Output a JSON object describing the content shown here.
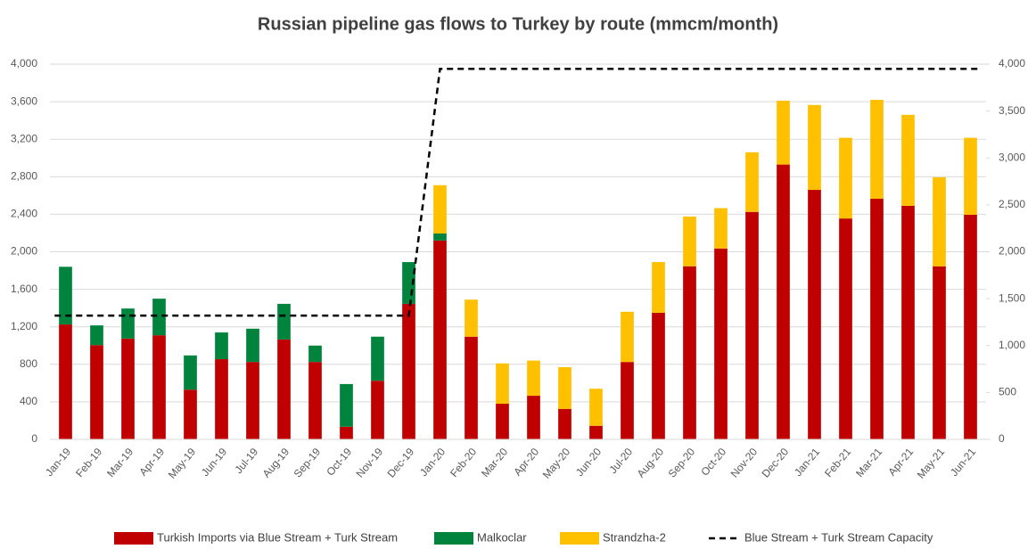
{
  "chart_data": {
    "type": "bar",
    "title": "Russian pipeline gas flows to Turkey by route (mmcm/month)",
    "categories": [
      "Jan-19",
      "Feb-19",
      "Mar-19",
      "Apr-19",
      "May-19",
      "Jun-19",
      "Jul-19",
      "Aug-19",
      "Sep-19",
      "Oct-19",
      "Nov-19",
      "Dec-19",
      "Jan-20",
      "Feb-20",
      "Mar-20",
      "Apr-20",
      "May-20",
      "Jun-20",
      "Jul-20",
      "Aug-20",
      "Sep-20",
      "Oct-20",
      "Nov-20",
      "Dec-20",
      "Jan-21",
      "Feb-21",
      "Mar-21",
      "Apr-21",
      "May-21",
      "Jun-21"
    ],
    "stacked": true,
    "grid": true,
    "legend": "bottom",
    "ylim": [
      0,
      4000
    ],
    "yticks": [
      0,
      400,
      800,
      {
        "value": 1200,
        "label": "1,200"
      },
      {
        "value": 1600,
        "label": "1,600"
      },
      {
        "value": 2000,
        "label": "2,000"
      },
      {
        "value": 2400,
        "label": "2,400"
      },
      {
        "value": 2800,
        "label": "2,800"
      },
      {
        "value": 3200,
        "label": "3,200"
      },
      {
        "value": 3600,
        "label": "3,600"
      },
      {
        "value": 4000,
        "label": "4,000"
      }
    ],
    "y2lim": [
      0,
      4000
    ],
    "y2ticks": [
      0,
      500,
      {
        "value": 1000,
        "label": "1,000"
      },
      {
        "value": 1500,
        "label": "1,500"
      },
      {
        "value": 2000,
        "label": "2,000"
      },
      {
        "value": 2500,
        "label": "2,500"
      },
      {
        "value": 3000,
        "label": "3,000"
      },
      {
        "value": 3500,
        "label": "3,500"
      },
      {
        "value": 4000,
        "label": "4,000"
      }
    ],
    "series": [
      {
        "name": "Turkish Imports via Blue Stream + Turk Stream",
        "type": "bar",
        "color": "#c00000",
        "values": [
          1225,
          1005,
          1075,
          1110,
          530,
          855,
          825,
          1065,
          825,
          135,
          625,
          1445,
          2120,
          1095,
          380,
          465,
          325,
          145,
          825,
          1350,
          1845,
          2035,
          2425,
          2930,
          2660,
          2355,
          2565,
          2490,
          1845,
          2395
        ]
      },
      {
        "name": "Malkoclar",
        "type": "bar",
        "color": "#00843d",
        "values": [
          615,
          210,
          320,
          390,
          365,
          285,
          355,
          380,
          175,
          455,
          470,
          445,
          75,
          0,
          0,
          0,
          0,
          0,
          0,
          0,
          0,
          0,
          0,
          0,
          0,
          0,
          0,
          0,
          0,
          0
        ]
      },
      {
        "name": "Strandzha-2",
        "type": "bar",
        "color": "#ffc000",
        "values": [
          0,
          0,
          0,
          0,
          0,
          0,
          0,
          0,
          0,
          0,
          0,
          0,
          515,
          395,
          430,
          375,
          445,
          395,
          535,
          540,
          530,
          430,
          635,
          680,
          905,
          860,
          1055,
          970,
          950,
          820
        ]
      },
      {
        "name": "Blue Stream + Turk Stream Capacity",
        "type": "line",
        "dashed": true,
        "axis": "y2",
        "color": "#000000",
        "values": [
          1320,
          1320,
          1320,
          1320,
          1320,
          1320,
          1320,
          1320,
          1320,
          1320,
          1320,
          1320,
          3950,
          3950,
          3950,
          3950,
          3950,
          3950,
          3950,
          3950,
          3950,
          3950,
          3950,
          3950,
          3950,
          3950,
          3950,
          3950,
          3950,
          3950
        ]
      }
    ]
  }
}
